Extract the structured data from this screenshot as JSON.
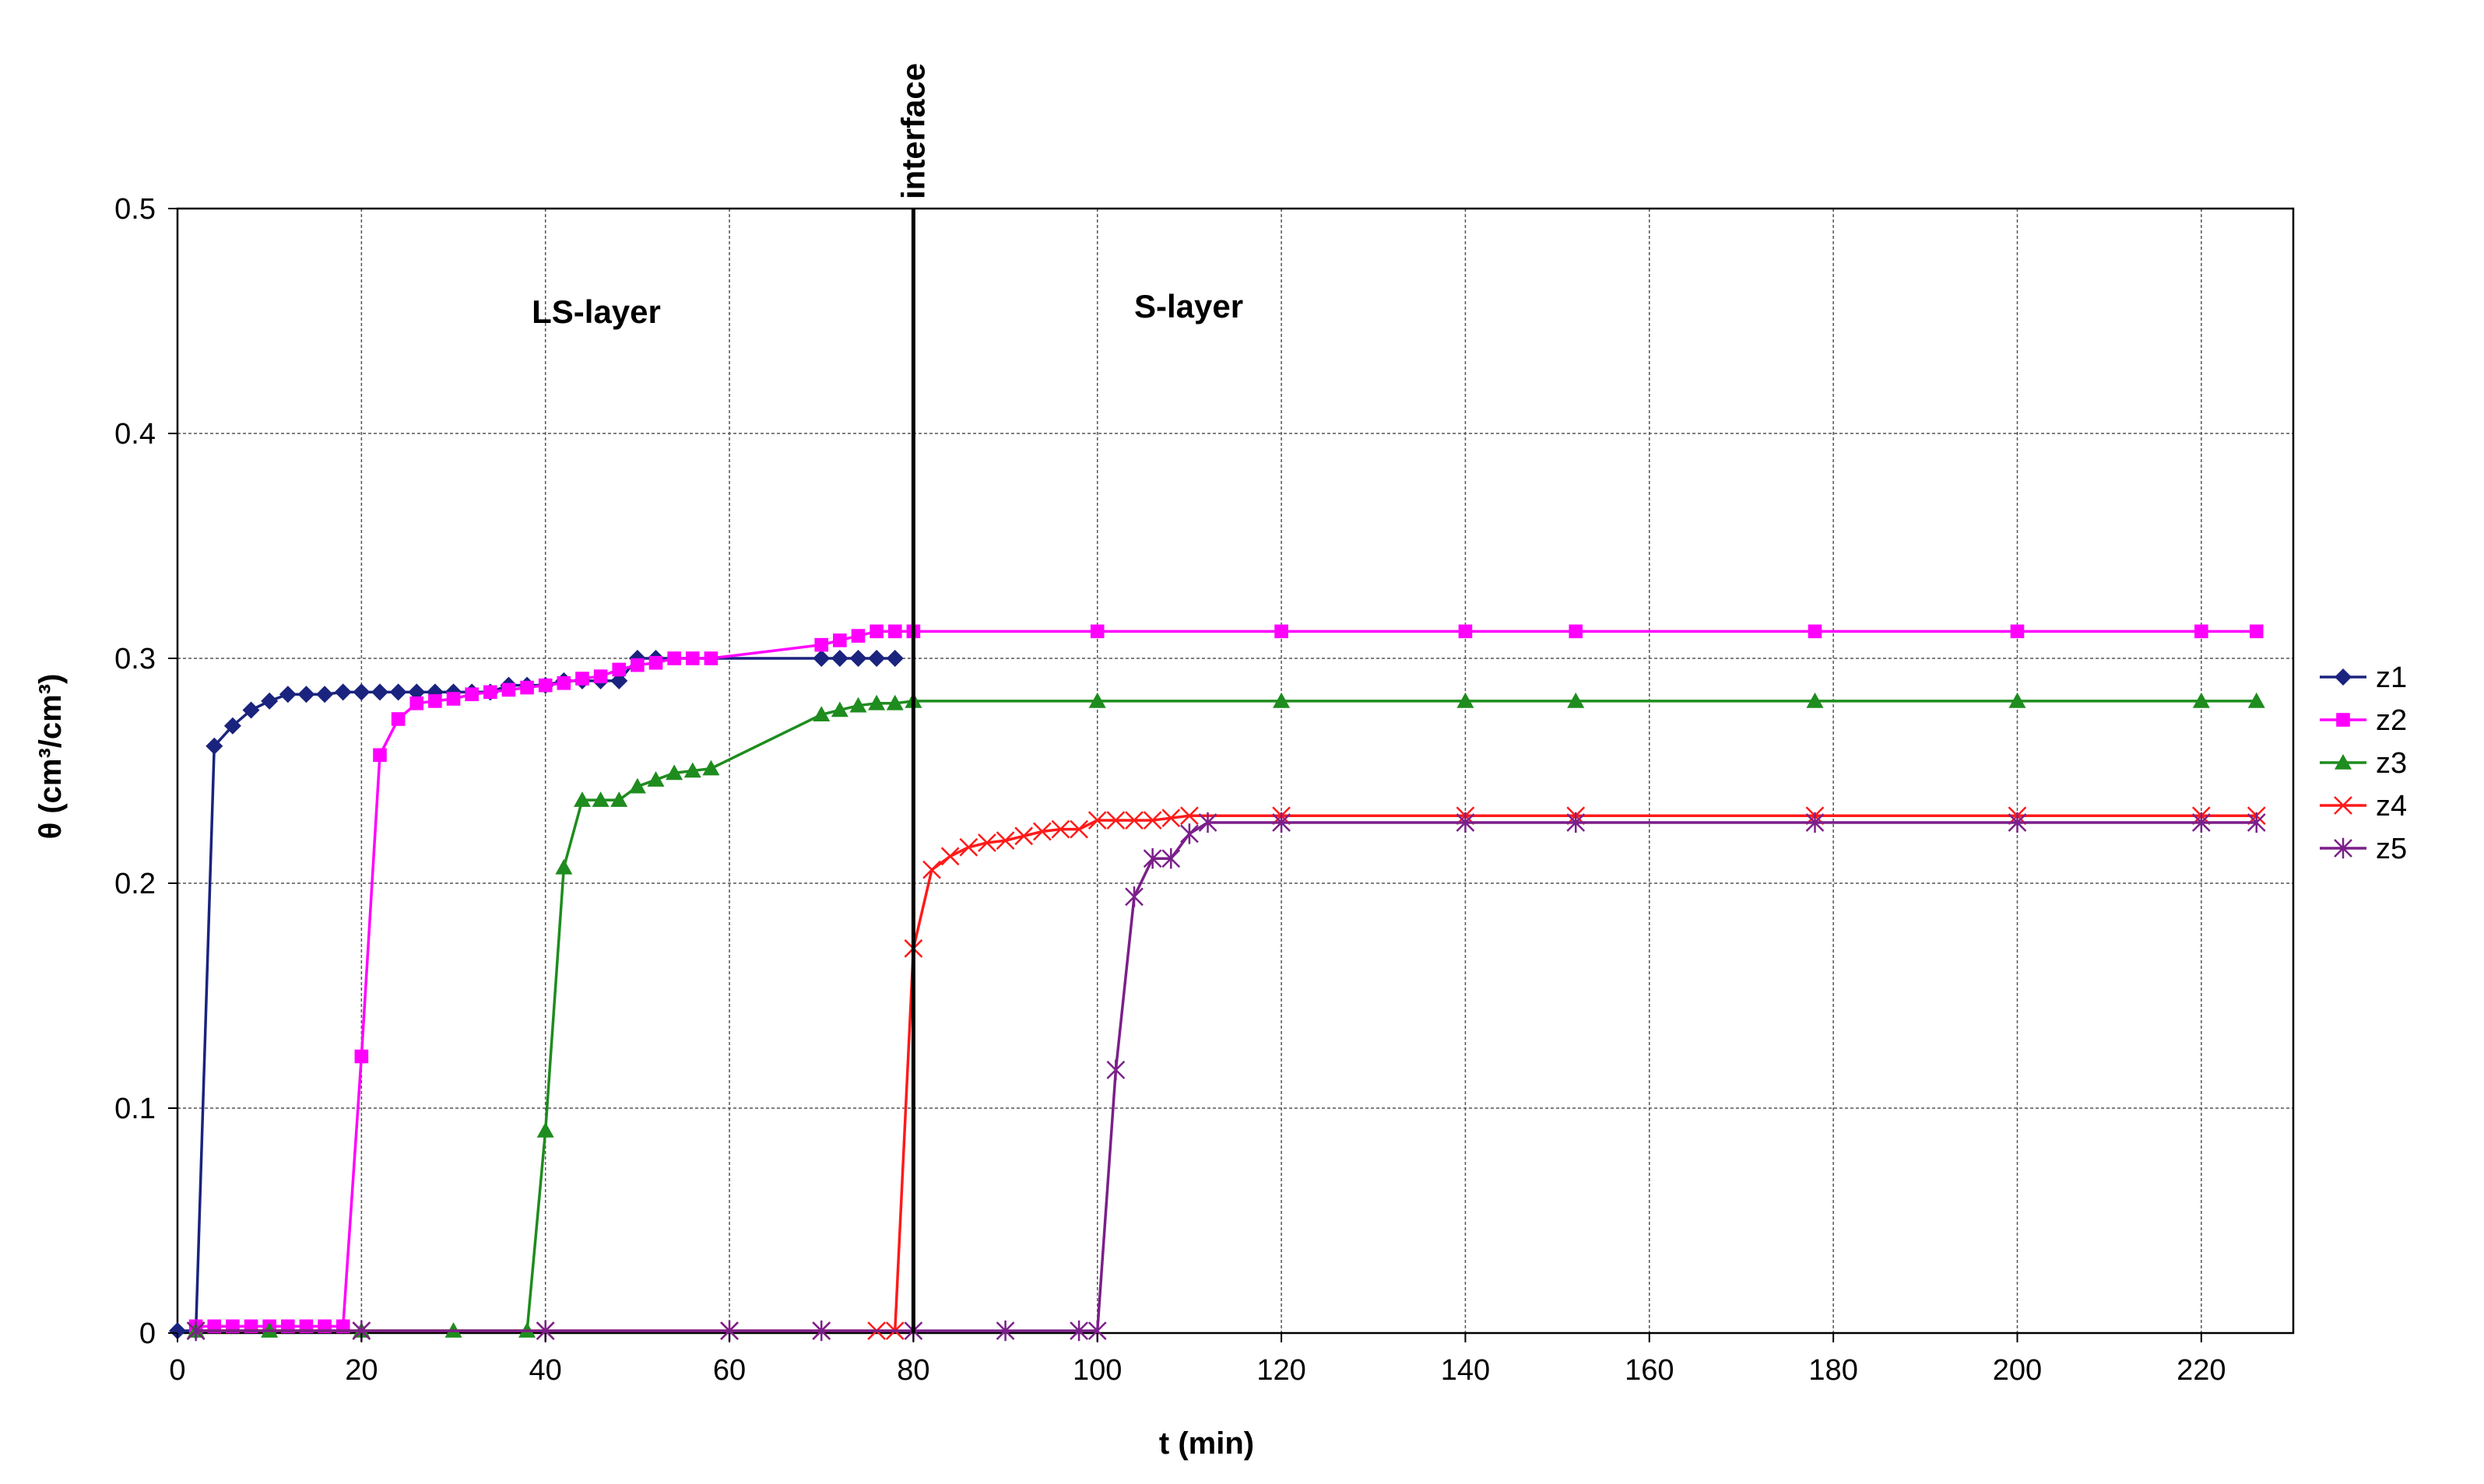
{
  "chart_data": {
    "type": "line",
    "xlabel": "t (min)",
    "ylabel": "θ (cm³/cm³)",
    "xlim": [
      0,
      230
    ],
    "ylim": [
      0,
      0.5
    ],
    "xticks": [
      0,
      20,
      40,
      60,
      80,
      100,
      120,
      140,
      160,
      180,
      200,
      220
    ],
    "yticks": [
      0,
      0.1,
      0.2,
      0.3,
      0.4,
      0.5
    ],
    "grid": true,
    "legend_position": "right",
    "annotations": {
      "ls_layer": "LS-layer",
      "s_layer": "S-layer",
      "interface": "interface",
      "interface_x": 80
    },
    "series": [
      {
        "name": "z1",
        "color": "#1a237e",
        "marker": "diamond",
        "x": [
          0,
          2,
          4,
          6,
          8,
          10,
          12,
          14,
          16,
          18,
          20,
          22,
          24,
          26,
          28,
          30,
          32,
          34,
          36,
          38,
          40,
          42,
          44,
          46,
          48,
          50,
          52,
          70,
          72,
          74,
          76,
          78
        ],
        "y": [
          0.001,
          0.001,
          0.261,
          0.27,
          0.277,
          0.281,
          0.284,
          0.284,
          0.284,
          0.285,
          0.285,
          0.285,
          0.285,
          0.285,
          0.285,
          0.285,
          0.285,
          0.285,
          0.288,
          0.288,
          0.288,
          0.29,
          0.29,
          0.29,
          0.29,
          0.3,
          0.3,
          0.3,
          0.3,
          0.3,
          0.3,
          0.3
        ]
      },
      {
        "name": "z2",
        "color": "#ff00ff",
        "marker": "square",
        "x": [
          2,
          4,
          6,
          8,
          10,
          12,
          14,
          16,
          18,
          20,
          22,
          24,
          26,
          28,
          30,
          32,
          34,
          36,
          38,
          40,
          42,
          44,
          46,
          48,
          50,
          52,
          54,
          56,
          58,
          70,
          72,
          74,
          76,
          78,
          80,
          100,
          120,
          140,
          152,
          178,
          200,
          220,
          226
        ],
        "y": [
          0.003,
          0.003,
          0.003,
          0.003,
          0.003,
          0.003,
          0.003,
          0.003,
          0.003,
          0.123,
          0.257,
          0.273,
          0.28,
          0.281,
          0.282,
          0.284,
          0.285,
          0.286,
          0.287,
          0.288,
          0.289,
          0.291,
          0.292,
          0.295,
          0.297,
          0.298,
          0.3,
          0.3,
          0.3,
          0.306,
          0.308,
          0.31,
          0.312,
          0.312,
          0.312,
          0.312,
          0.312,
          0.312,
          0.312,
          0.312,
          0.312,
          0.312,
          0.312
        ]
      },
      {
        "name": "z3",
        "color": "#1e8c1e",
        "marker": "triangle",
        "x": [
          2,
          10,
          20,
          30,
          38,
          40,
          42,
          44,
          46,
          48,
          50,
          52,
          54,
          56,
          58,
          70,
          72,
          74,
          76,
          78,
          80,
          100,
          120,
          140,
          152,
          178,
          200,
          220,
          226
        ],
        "y": [
          0.001,
          0.001,
          0.001,
          0.001,
          0.001,
          0.09,
          0.207,
          0.237,
          0.237,
          0.237,
          0.243,
          0.246,
          0.249,
          0.25,
          0.251,
          0.275,
          0.277,
          0.279,
          0.28,
          0.28,
          0.281,
          0.281,
          0.281,
          0.281,
          0.281,
          0.281,
          0.281,
          0.281,
          0.281
        ]
      },
      {
        "name": "z4",
        "color": "#ff1a1a",
        "marker": "x",
        "x": [
          2,
          20,
          40,
          60,
          70,
          76,
          78,
          80,
          82,
          84,
          86,
          88,
          90,
          92,
          94,
          96,
          98,
          100,
          102,
          104,
          106,
          108,
          110,
          120,
          140,
          152,
          178,
          200,
          220,
          226
        ],
        "y": [
          0.001,
          0.001,
          0.001,
          0.001,
          0.001,
          0.001,
          0.001,
          0.171,
          0.206,
          0.212,
          0.216,
          0.218,
          0.219,
          0.221,
          0.223,
          0.224,
          0.224,
          0.228,
          0.228,
          0.228,
          0.228,
          0.229,
          0.23,
          0.23,
          0.23,
          0.23,
          0.23,
          0.23,
          0.23,
          0.23
        ]
      },
      {
        "name": "z5",
        "color": "#7b1f8a",
        "marker": "star",
        "x": [
          2,
          20,
          40,
          60,
          70,
          80,
          90,
          98,
          100,
          102,
          104,
          106,
          108,
          110,
          112,
          120,
          140,
          152,
          178,
          200,
          220,
          226
        ],
        "y": [
          0.001,
          0.001,
          0.001,
          0.001,
          0.001,
          0.001,
          0.001,
          0.001,
          0.001,
          0.117,
          0.194,
          0.211,
          0.211,
          0.222,
          0.227,
          0.227,
          0.227,
          0.227,
          0.227,
          0.227,
          0.227,
          0.227
        ]
      }
    ]
  }
}
